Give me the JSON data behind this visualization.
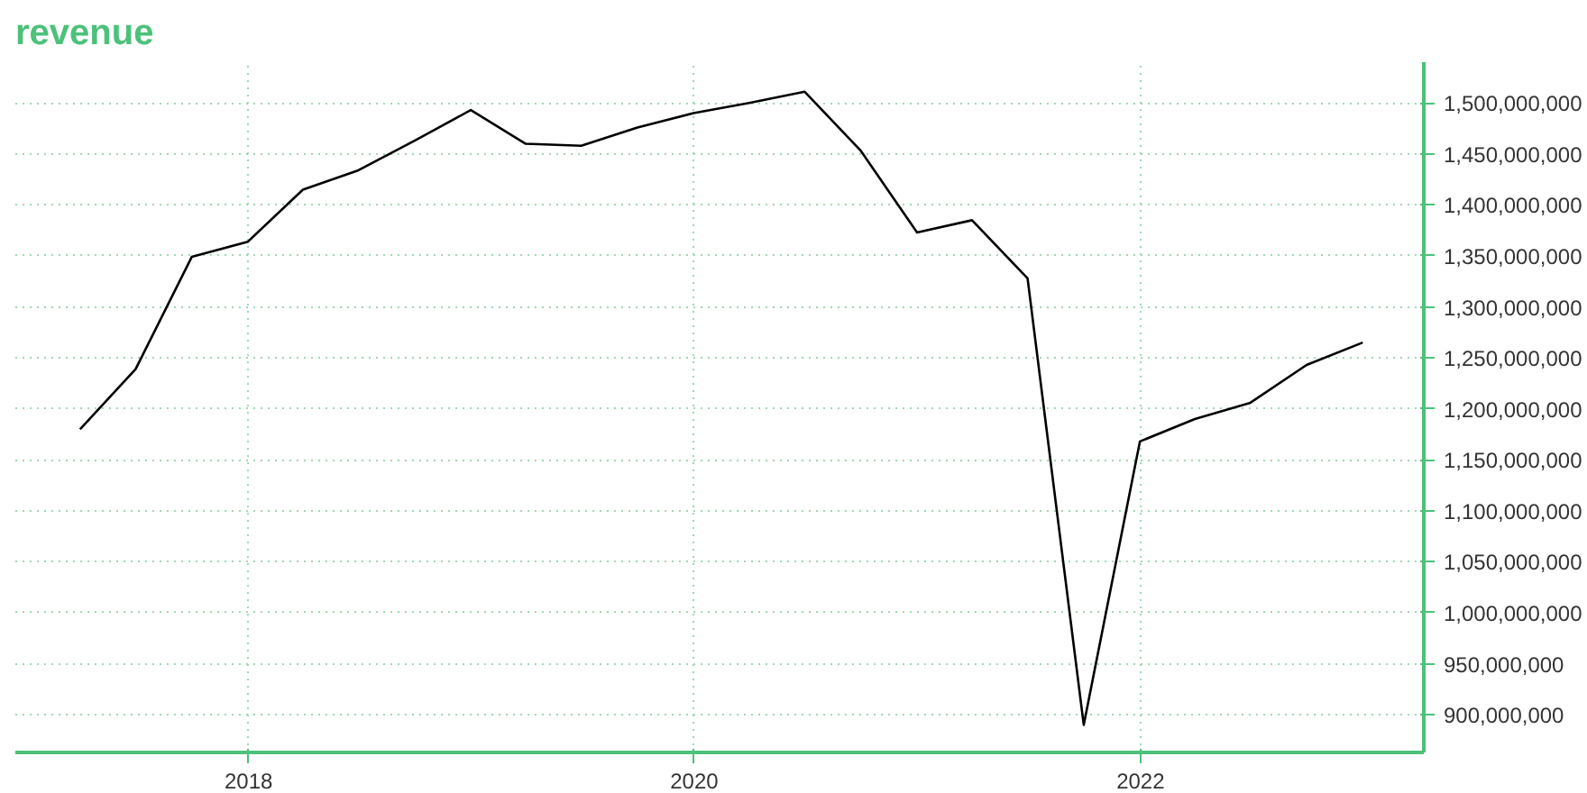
{
  "chart_data": {
    "type": "line",
    "title": "revenue",
    "x": [
      "2017-03-31",
      "2017-06-30",
      "2017-09-30",
      "2017-12-31",
      "2018-03-31",
      "2018-06-30",
      "2018-09-30",
      "2018-12-31",
      "2019-03-31",
      "2019-06-30",
      "2019-09-30",
      "2019-12-31",
      "2020-03-31",
      "2020-06-30",
      "2020-09-30",
      "2020-12-31",
      "2021-03-31",
      "2021-06-30",
      "2021-09-30",
      "2021-12-31",
      "2022-03-31",
      "2022-06-30",
      "2022-09-30",
      "2022-12-31"
    ],
    "series": [
      {
        "color": "#000000",
        "values": [
          1180000000,
          1239000000,
          1349000000,
          1364000000,
          1415000000,
          1434000000,
          1463000000,
          1493000000,
          1460000000,
          1458000000,
          1476000000,
          1490000000,
          1500000000,
          1511000000,
          1453000000,
          1373000000,
          1385000000,
          1328000000,
          890000000,
          1168000000,
          1190000000,
          1206000000,
          1243000000,
          1265000000
        ]
      }
    ],
    "xlim": [
      "2016-12-15",
      "2023-04-10"
    ],
    "xticks": [
      "2018",
      "2020",
      "2022"
    ],
    "ylim": [
      863000000,
      1540000000
    ],
    "yticks": [
      {
        "value": 900000000,
        "label": "900,000,000"
      },
      {
        "value": 950000000,
        "label": "950,000,000"
      },
      {
        "value": 1000000000,
        "label": "1,000,000,000"
      },
      {
        "value": 1050000000,
        "label": "1,050,000,000"
      },
      {
        "value": 1100000000,
        "label": "1,100,000,000"
      },
      {
        "value": 1150000000,
        "label": "1,150,000,000"
      },
      {
        "value": 1200000000,
        "label": "1,200,000,000"
      },
      {
        "value": 1250000000,
        "label": "1,250,000,000"
      },
      {
        "value": 1300000000,
        "label": "1,300,000,000"
      },
      {
        "value": 1350000000,
        "label": "1,350,000,000"
      },
      {
        "value": 1400000000,
        "label": "1,400,000,000"
      },
      {
        "value": 1450000000,
        "label": "1,450,000,000"
      },
      {
        "value": 1500000000,
        "label": "1,500,000,000"
      }
    ],
    "grid": true,
    "marker": "none",
    "line_style": "solid"
  }
}
